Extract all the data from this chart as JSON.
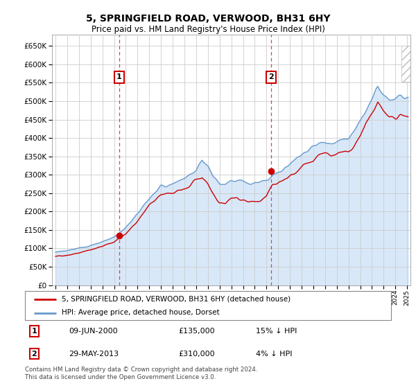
{
  "title": "5, SPRINGFIELD ROAD, VERWOOD, BH31 6HY",
  "subtitle": "Price paid vs. HM Land Registry's House Price Index (HPI)",
  "ylim": [
    0,
    680000
  ],
  "yticks": [
    0,
    50000,
    100000,
    150000,
    200000,
    250000,
    300000,
    350000,
    400000,
    450000,
    500000,
    550000,
    600000,
    650000
  ],
  "background_color": "#ffffff",
  "grid_color": "#cccccc",
  "plot_bg": "#ffffff",
  "fill_color": "#d8e8f8",
  "hpi_color": "#6699cc",
  "price_color": "#cc0000",
  "dashed_line_color": "#dd4444",
  "legend_label_price": "5, SPRINGFIELD ROAD, VERWOOD, BH31 6HY (detached house)",
  "legend_label_hpi": "HPI: Average price, detached house, Dorset",
  "transaction1": {
    "label": "1",
    "date": "09-JUN-2000",
    "price": "£135,000",
    "hpi": "15% ↓ HPI"
  },
  "transaction2": {
    "label": "2",
    "date": "29-MAY-2013",
    "price": "£310,000",
    "hpi": "4% ↓ HPI"
  },
  "footnote": "Contains HM Land Registry data © Crown copyright and database right 2024.\nThis data is licensed under the Open Government Licence v3.0.",
  "sale1_x": 2000.44,
  "sale1_y": 135000,
  "sale2_x": 2013.41,
  "sale2_y": 310000,
  "xmin": 1994.7,
  "xmax": 2025.3
}
